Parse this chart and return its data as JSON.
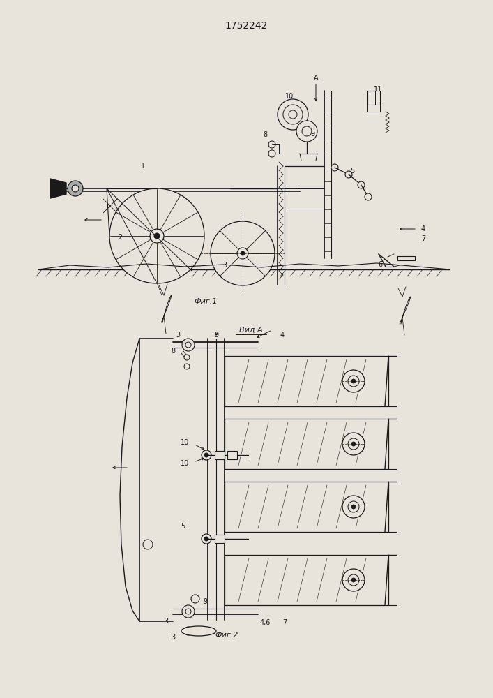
{
  "title": "1752242",
  "fig1_caption": "Фиг.1",
  "fig2_caption": "Фиг.2",
  "view_label": "Вид А",
  "bg_color": "#e8e4dc",
  "line_color": "#1a1a1a",
  "title_fontsize": 10,
  "caption_fontsize": 8,
  "label_fontsize": 7
}
